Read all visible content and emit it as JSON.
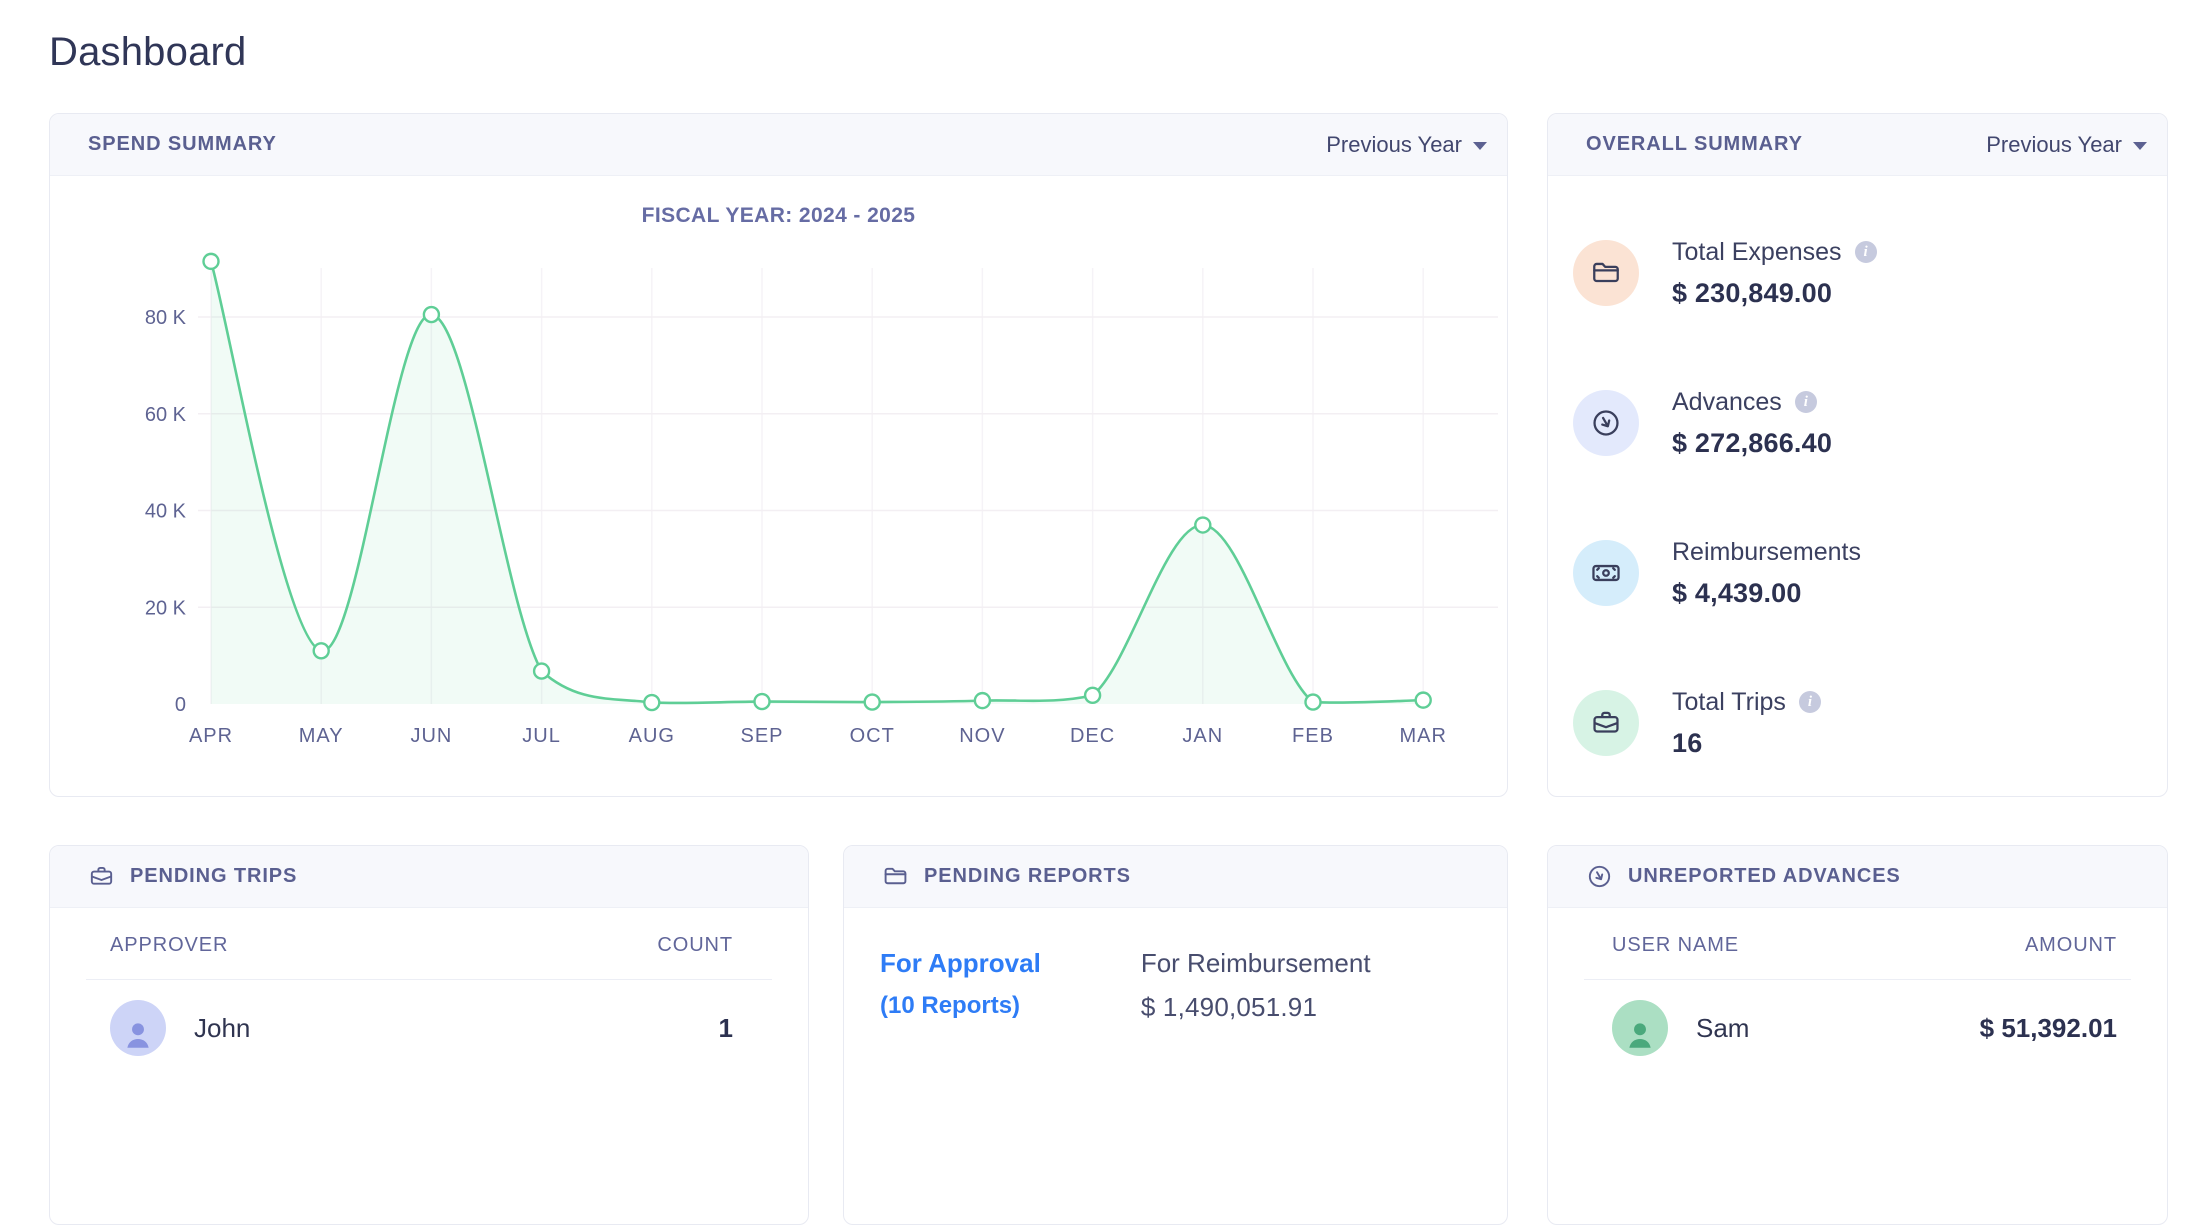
{
  "page": {
    "title": "Dashboard"
  },
  "spend_summary": {
    "header": "SPEND SUMMARY",
    "period_selector": "Previous Year"
  },
  "chart_data": {
    "type": "area",
    "title": "FISCAL YEAR: 2024 - 2025",
    "categories": [
      "APR",
      "MAY",
      "JUN",
      "JUL",
      "AUG",
      "SEP",
      "OCT",
      "NOV",
      "DEC",
      "JAN",
      "FEB",
      "MAR"
    ],
    "values": [
      91500,
      11000,
      80500,
      6800,
      300,
      500,
      400,
      700,
      1800,
      37000,
      400,
      800
    ],
    "xlabel": "",
    "ylabel": "",
    "ylim": [
      0,
      95000
    ],
    "yticks": [
      {
        "value": 0,
        "label": "0"
      },
      {
        "value": 20000,
        "label": "20 K"
      },
      {
        "value": 40000,
        "label": "40 K"
      },
      {
        "value": 60000,
        "label": "60 K"
      },
      {
        "value": 80000,
        "label": "80 K"
      }
    ],
    "grid": true,
    "legend": false,
    "line_color": "#5fce96",
    "fill_color": "#5fce96",
    "fill_opacity": 0.09,
    "point_style": "open-circle"
  },
  "overall_summary": {
    "header": "OVERALL SUMMARY",
    "period_selector": "Previous Year",
    "items": [
      {
        "label": "Total Expenses",
        "value": "$ 230,849.00",
        "icon": "folder-icon",
        "icon_bg": "#fbe3d4",
        "has_info": true
      },
      {
        "label": "Advances",
        "value": "$ 272,866.40",
        "icon": "clock-arrow-icon",
        "icon_bg": "#e3e9fc",
        "has_info": true
      },
      {
        "label": "Reimbursements",
        "value": "$ 4,439.00",
        "icon": "banknote-icon",
        "icon_bg": "#d5edfb",
        "has_info": false
      },
      {
        "label": "Total Trips",
        "value": "16",
        "icon": "briefcase-icon",
        "icon_bg": "#d7f3e5",
        "has_info": true
      }
    ]
  },
  "pending_trips": {
    "header": "PENDING TRIPS",
    "icon": "briefcase-icon",
    "columns": [
      "APPROVER",
      "COUNT"
    ],
    "rows": [
      {
        "name": "John",
        "count": "1",
        "avatar_bg": "#cdd4f7",
        "avatar_glyph": "#8893e0"
      }
    ]
  },
  "pending_reports": {
    "header": "PENDING REPORTS",
    "icon": "folder-icon",
    "for_approval": {
      "label": "For Approval",
      "sub": "(10 Reports)"
    },
    "for_reimbursement": {
      "label": "For Reimbursement",
      "value": "$ 1,490,051.91"
    }
  },
  "unreported_advances": {
    "header": "UNREPORTED ADVANCES",
    "icon": "clock-arrow-icon",
    "columns": [
      "USER NAME",
      "AMOUNT"
    ],
    "rows": [
      {
        "name": "Sam",
        "amount": "$ 51,392.01",
        "avatar_bg": "#abdfc3",
        "avatar_glyph": "#4aa97c"
      }
    ]
  },
  "colors": {
    "accent_green": "#5fce96",
    "link_blue": "#2e7cf6",
    "heading": "#303657",
    "muted_purple": "#5a5f90",
    "axis_label": "#5e6392",
    "grid_line": "#f3eff3"
  }
}
